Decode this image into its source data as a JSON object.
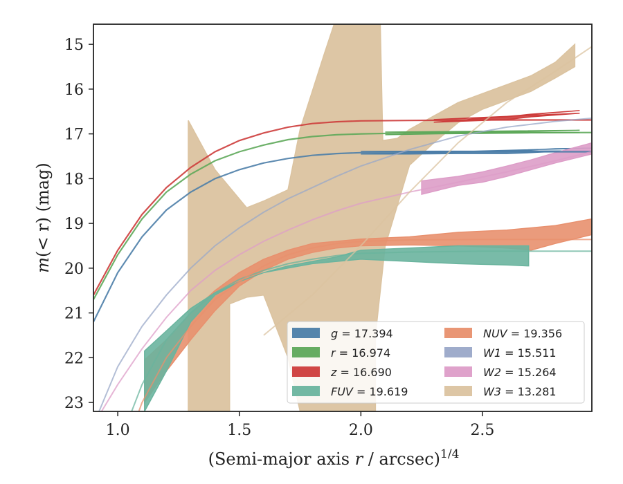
{
  "chart_data": {
    "type": "line",
    "xlabel_main": "(Semi-major axis ",
    "xlabel_var": "r",
    "xlabel_tail": " / arcsec)",
    "xlabel_sup": "1/4",
    "ylabel_main": "m",
    "ylabel_tail": "(< r) (mag)",
    "xlim": [
      0.9,
      2.95
    ],
    "ylim": [
      23.2,
      14.55
    ],
    "y_inverted": true,
    "xticks": [
      1.0,
      1.5,
      2.0,
      2.5
    ],
    "xtick_labels": [
      "1.0",
      "1.5",
      "2.0",
      "2.5"
    ],
    "yticks": [
      15,
      16,
      17,
      18,
      19,
      20,
      21,
      22,
      23
    ],
    "ytick_labels": [
      "15",
      "16",
      "17",
      "18",
      "19",
      "20",
      "21",
      "22",
      "23"
    ],
    "grid": false,
    "legend_position": "lower-right",
    "series": [
      {
        "name": "g = 17.394",
        "band": "g",
        "value": "17.394",
        "color": "#4c7ea8",
        "model": [
          [
            0.9,
            21.2
          ],
          [
            1.0,
            20.1
          ],
          [
            1.1,
            19.3
          ],
          [
            1.2,
            18.7
          ],
          [
            1.3,
            18.3
          ],
          [
            1.4,
            18.0
          ],
          [
            1.5,
            17.8
          ],
          [
            1.6,
            17.65
          ],
          [
            1.7,
            17.55
          ],
          [
            1.8,
            17.48
          ],
          [
            1.9,
            17.44
          ],
          [
            2.0,
            17.42
          ],
          [
            2.2,
            17.41
          ],
          [
            2.5,
            17.4
          ],
          [
            2.95,
            17.4
          ]
        ],
        "measured_upper": [
          [
            2.0,
            17.39
          ],
          [
            2.2,
            17.39
          ],
          [
            2.4,
            17.39
          ],
          [
            2.6,
            17.38
          ],
          [
            2.7,
            17.36
          ],
          [
            2.8,
            17.33
          ],
          [
            2.95,
            17.32
          ]
        ],
        "measured_lower": [
          [
            2.0,
            17.45
          ],
          [
            2.2,
            17.45
          ],
          [
            2.4,
            17.44
          ],
          [
            2.6,
            17.44
          ],
          [
            2.7,
            17.42
          ],
          [
            2.8,
            17.39
          ],
          [
            2.95,
            17.38
          ]
        ]
      },
      {
        "name": "r = 16.974",
        "band": "r",
        "value": "16.974",
        "color": "#5ea85a",
        "model": [
          [
            0.9,
            20.7
          ],
          [
            1.0,
            19.7
          ],
          [
            1.1,
            18.9
          ],
          [
            1.2,
            18.3
          ],
          [
            1.3,
            17.9
          ],
          [
            1.4,
            17.6
          ],
          [
            1.5,
            17.4
          ],
          [
            1.6,
            17.25
          ],
          [
            1.7,
            17.13
          ],
          [
            1.8,
            17.06
          ],
          [
            1.9,
            17.02
          ],
          [
            2.0,
            17.0
          ],
          [
            2.2,
            16.98
          ],
          [
            2.5,
            16.975
          ],
          [
            2.95,
            16.97
          ]
        ],
        "measured_upper": [
          [
            2.1,
            16.96
          ],
          [
            2.3,
            16.95
          ],
          [
            2.5,
            16.94
          ],
          [
            2.7,
            16.93
          ],
          [
            2.9,
            16.92
          ]
        ],
        "measured_lower": [
          [
            2.1,
            17.02
          ],
          [
            2.3,
            17.0
          ],
          [
            2.5,
            16.99
          ],
          [
            2.7,
            16.98
          ],
          [
            2.9,
            16.97
          ]
        ]
      },
      {
        "name": "z = 16.690",
        "band": "z",
        "value": "16.690",
        "color": "#cd3c3b",
        "model": [
          [
            0.9,
            20.6
          ],
          [
            1.0,
            19.6
          ],
          [
            1.1,
            18.8
          ],
          [
            1.2,
            18.2
          ],
          [
            1.3,
            17.75
          ],
          [
            1.4,
            17.4
          ],
          [
            1.5,
            17.15
          ],
          [
            1.6,
            16.98
          ],
          [
            1.7,
            16.85
          ],
          [
            1.8,
            16.77
          ],
          [
            1.9,
            16.73
          ],
          [
            2.0,
            16.71
          ],
          [
            2.2,
            16.7
          ],
          [
            2.5,
            16.69
          ],
          [
            2.95,
            16.69
          ]
        ],
        "measured_upper": [
          [
            2.3,
            16.68
          ],
          [
            2.4,
            16.66
          ],
          [
            2.5,
            16.64
          ],
          [
            2.6,
            16.62
          ],
          [
            2.7,
            16.56
          ],
          [
            2.8,
            16.52
          ],
          [
            2.9,
            16.48
          ]
        ],
        "measured_lower": [
          [
            2.3,
            16.74
          ],
          [
            2.4,
            16.72
          ],
          [
            2.5,
            16.7
          ],
          [
            2.6,
            16.68
          ],
          [
            2.7,
            16.62
          ],
          [
            2.8,
            16.58
          ],
          [
            2.9,
            16.54
          ]
        ]
      },
      {
        "name": "FUV = 19.619",
        "band": "FUV",
        "value": "19.619",
        "color": "#6ab49e",
        "model": [
          [
            1.0,
            24.0
          ],
          [
            1.1,
            22.6
          ],
          [
            1.2,
            21.6
          ],
          [
            1.3,
            21.0
          ],
          [
            1.4,
            20.55
          ],
          [
            1.5,
            20.25
          ],
          [
            1.6,
            20.05
          ],
          [
            1.7,
            19.9
          ],
          [
            1.8,
            19.8
          ],
          [
            1.9,
            19.72
          ],
          [
            2.0,
            19.67
          ],
          [
            2.2,
            19.64
          ],
          [
            2.5,
            19.62
          ],
          [
            2.95,
            19.62
          ]
        ],
        "measured_upper": [
          [
            1.11,
            21.85
          ],
          [
            1.2,
            21.4
          ],
          [
            1.3,
            20.9
          ],
          [
            1.4,
            20.55
          ],
          [
            1.5,
            20.3
          ],
          [
            1.6,
            20.1
          ],
          [
            1.7,
            19.95
          ],
          [
            1.8,
            19.85
          ],
          [
            1.9,
            19.75
          ],
          [
            2.0,
            19.6
          ],
          [
            2.2,
            19.55
          ],
          [
            2.4,
            19.5
          ],
          [
            2.6,
            19.5
          ],
          [
            2.69,
            19.5
          ]
        ],
        "measured_lower": [
          [
            2.69,
            19.95
          ],
          [
            2.6,
            19.93
          ],
          [
            2.4,
            19.9
          ],
          [
            2.2,
            19.85
          ],
          [
            2.0,
            19.8
          ],
          [
            1.9,
            19.85
          ],
          [
            1.8,
            19.9
          ],
          [
            1.7,
            20.0
          ],
          [
            1.6,
            20.1
          ],
          [
            1.5,
            20.3
          ],
          [
            1.4,
            20.6
          ],
          [
            1.3,
            21.2
          ],
          [
            1.2,
            22.3
          ],
          [
            1.11,
            23.2
          ]
        ]
      },
      {
        "name": "NUV = 19.356",
        "band": "NUV",
        "value": "19.356",
        "color": "#e8906e",
        "model": [
          [
            1.0,
            24.5
          ],
          [
            1.1,
            23.0
          ],
          [
            1.2,
            22.0
          ],
          [
            1.3,
            21.3
          ],
          [
            1.4,
            20.7
          ],
          [
            1.5,
            20.3
          ],
          [
            1.6,
            19.95
          ],
          [
            1.7,
            19.7
          ],
          [
            1.8,
            19.55
          ],
          [
            1.9,
            19.45
          ],
          [
            2.0,
            19.4
          ],
          [
            2.2,
            19.37
          ],
          [
            2.5,
            19.36
          ],
          [
            2.95,
            19.36
          ]
        ],
        "measured_upper": [
          [
            1.11,
            22.05
          ],
          [
            1.2,
            21.6
          ],
          [
            1.3,
            21.0
          ],
          [
            1.4,
            20.5
          ],
          [
            1.5,
            20.1
          ],
          [
            1.6,
            19.8
          ],
          [
            1.7,
            19.6
          ],
          [
            1.8,
            19.45
          ],
          [
            1.9,
            19.4
          ],
          [
            2.0,
            19.35
          ],
          [
            2.2,
            19.3
          ],
          [
            2.4,
            19.2
          ],
          [
            2.6,
            19.15
          ],
          [
            2.8,
            19.05
          ],
          [
            2.95,
            18.9
          ]
        ],
        "measured_lower": [
          [
            2.95,
            19.25
          ],
          [
            2.8,
            19.45
          ],
          [
            2.7,
            19.6
          ],
          [
            2.6,
            19.55
          ],
          [
            2.4,
            19.5
          ],
          [
            2.2,
            19.48
          ],
          [
            2.0,
            19.5
          ],
          [
            1.9,
            19.55
          ],
          [
            1.8,
            19.65
          ],
          [
            1.7,
            19.8
          ],
          [
            1.6,
            20.05
          ],
          [
            1.5,
            20.4
          ],
          [
            1.4,
            20.95
          ],
          [
            1.3,
            21.6
          ],
          [
            1.2,
            22.3
          ],
          [
            1.11,
            23.0
          ]
        ]
      },
      {
        "name": "W1 = 15.511",
        "band": "W1",
        "value": "15.511",
        "color": "#9aa8c8",
        "model": [
          [
            0.9,
            23.5
          ],
          [
            1.0,
            22.2
          ],
          [
            1.1,
            21.3
          ],
          [
            1.2,
            20.6
          ],
          [
            1.3,
            20.0
          ],
          [
            1.4,
            19.5
          ],
          [
            1.5,
            19.1
          ],
          [
            1.6,
            18.75
          ],
          [
            1.7,
            18.45
          ],
          [
            1.8,
            18.2
          ],
          [
            1.9,
            17.95
          ],
          [
            2.0,
            17.72
          ],
          [
            2.2,
            17.35
          ],
          [
            2.4,
            17.05
          ],
          [
            2.6,
            16.85
          ],
          [
            2.8,
            16.72
          ],
          [
            2.95,
            16.65
          ]
        ],
        "measured_upper": [],
        "measured_lower": []
      },
      {
        "name": "W2 = 15.264",
        "band": "W2",
        "value": "15.264",
        "color": "#dd9dc8",
        "model": [
          [
            0.9,
            23.5
          ],
          [
            1.0,
            22.6
          ],
          [
            1.1,
            21.8
          ],
          [
            1.2,
            21.1
          ],
          [
            1.3,
            20.5
          ],
          [
            1.4,
            20.05
          ],
          [
            1.5,
            19.7
          ],
          [
            1.6,
            19.4
          ],
          [
            1.7,
            19.15
          ],
          [
            1.8,
            18.92
          ],
          [
            1.9,
            18.72
          ],
          [
            2.0,
            18.55
          ],
          [
            2.2,
            18.3
          ],
          [
            2.4,
            18.08
          ],
          [
            2.6,
            17.85
          ],
          [
            2.8,
            17.6
          ],
          [
            2.95,
            17.4
          ]
        ],
        "measured_upper": [
          [
            2.25,
            18.05
          ],
          [
            2.4,
            17.95
          ],
          [
            2.5,
            17.85
          ],
          [
            2.6,
            17.72
          ],
          [
            2.7,
            17.58
          ],
          [
            2.8,
            17.42
          ],
          [
            2.95,
            17.2
          ]
        ],
        "measured_lower": [
          [
            2.95,
            17.45
          ],
          [
            2.8,
            17.65
          ],
          [
            2.7,
            17.8
          ],
          [
            2.6,
            17.95
          ],
          [
            2.5,
            18.08
          ],
          [
            2.4,
            18.15
          ],
          [
            2.25,
            18.35
          ]
        ]
      },
      {
        "name": "W3 = 13.281",
        "band": "W3",
        "value": "13.281",
        "color": "#dbc3a0",
        "model": [
          [
            1.6,
            21.5
          ],
          [
            1.8,
            20.6
          ],
          [
            2.0,
            19.5
          ],
          [
            2.2,
            18.3
          ],
          [
            2.4,
            17.2
          ],
          [
            2.6,
            16.3
          ],
          [
            2.8,
            15.6
          ],
          [
            2.95,
            15.05
          ]
        ],
        "measured_upper": [
          [
            1.29,
            16.7
          ],
          [
            1.4,
            17.8
          ],
          [
            1.53,
            18.65
          ],
          [
            1.6,
            18.5
          ],
          [
            1.7,
            18.25
          ],
          [
            1.75,
            16.9
          ],
          [
            1.85,
            15.2
          ],
          [
            1.89,
            14.55
          ],
          [
            2.08,
            14.55
          ],
          [
            2.09,
            17.15
          ],
          [
            2.15,
            17.1
          ],
          [
            2.2,
            16.9
          ],
          [
            2.3,
            16.6
          ],
          [
            2.4,
            16.3
          ],
          [
            2.5,
            16.1
          ],
          [
            2.6,
            15.9
          ],
          [
            2.7,
            15.7
          ],
          [
            2.8,
            15.4
          ],
          [
            2.88,
            15.0
          ]
        ],
        "measured_lower": [
          [
            2.88,
            15.5
          ],
          [
            2.8,
            15.75
          ],
          [
            2.7,
            16.05
          ],
          [
            2.6,
            16.25
          ],
          [
            2.5,
            16.45
          ],
          [
            2.4,
            16.75
          ],
          [
            2.3,
            17.2
          ],
          [
            2.2,
            17.7
          ],
          [
            2.1,
            19.5
          ],
          [
            2.06,
            21.5
          ],
          [
            2.06,
            23.2
          ],
          [
            1.95,
            23.2
          ],
          [
            1.8,
            23.2
          ],
          [
            1.75,
            23.2
          ],
          [
            1.7,
            22.0
          ],
          [
            1.6,
            20.6
          ],
          [
            1.53,
            20.65
          ],
          [
            1.46,
            20.8
          ],
          [
            1.46,
            23.2
          ],
          [
            1.29,
            23.2
          ]
        ]
      }
    ]
  }
}
